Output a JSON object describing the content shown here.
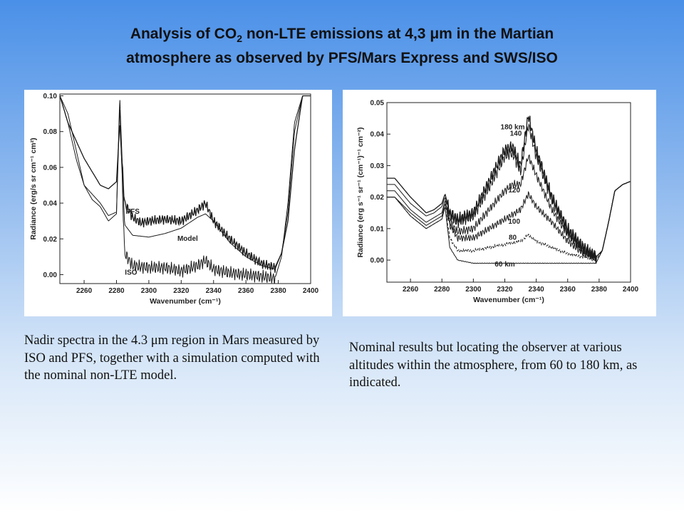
{
  "title": {
    "line1_pre": "Analysis of CO",
    "line1_sub": "2",
    "line1_post": " non-LTE emissions at 4,3 μm in the Martian",
    "line2": "atmosphere as observed by PFS/Mars Express and SWS/ISO"
  },
  "captions": {
    "left": "Nadir spectra in the 4.3 μm region in Mars measured by ISO and PFS, together with a simulation computed with the nominal non-LTE model.",
    "right": "Nominal results but locating the observer at various altitudes within the atmosphere, from 60 to 180 km, as indicated."
  },
  "chart_data": [
    {
      "type": "line",
      "xlabel": "Wavenumber (cm⁻¹)",
      "ylabel": "Radiance (erg/s sr cm⁻¹ cm²)",
      "xlim": [
        2245,
        2400
      ],
      "ylim": [
        -0.005,
        0.101
      ],
      "xticks": [
        2260,
        2280,
        2300,
        2320,
        2340,
        2360,
        2380,
        2400
      ],
      "yticks": [
        0.0,
        0.02,
        0.04,
        0.06,
        0.08,
        0.1
      ],
      "ytick_labels": [
        "0.00",
        "0.02",
        "0.04",
        "0.06",
        "0.08",
        "0.10"
      ],
      "series": [
        {
          "name": "PFS",
          "x": [
            2245,
            2250,
            2260,
            2270,
            2275,
            2280,
            2282,
            2285,
            2290,
            2295,
            2300,
            2310,
            2320,
            2330,
            2335,
            2340,
            2350,
            2360,
            2370,
            2378,
            2382,
            2386,
            2390,
            2395
          ],
          "y": [
            0.1,
            0.085,
            0.065,
            0.05,
            0.048,
            0.052,
            0.085,
            0.04,
            0.032,
            0.029,
            0.03,
            0.031,
            0.03,
            0.036,
            0.04,
            0.03,
            0.02,
            0.012,
            0.006,
            0.004,
            0.012,
            0.03,
            0.07,
            0.1
          ],
          "noise": 0.003
        },
        {
          "name": "Model",
          "x": [
            2245,
            2250,
            2255,
            2260,
            2265,
            2270,
            2275,
            2280,
            2282,
            2285,
            2290,
            2300,
            2310,
            2320,
            2330,
            2335,
            2340,
            2350,
            2360,
            2370,
            2378,
            2382,
            2386,
            2390,
            2395
          ],
          "y": [
            0.1,
            0.09,
            0.07,
            0.05,
            0.045,
            0.04,
            0.033,
            0.035,
            0.1,
            0.028,
            0.022,
            0.021,
            0.023,
            0.026,
            0.032,
            0.034,
            0.03,
            0.018,
            0.01,
            0.005,
            0.003,
            0.012,
            0.035,
            0.08,
            0.1
          ],
          "noise": 0.0
        },
        {
          "name": "ISO",
          "x": [
            2245,
            2250,
            2255,
            2260,
            2265,
            2270,
            2275,
            2280,
            2282,
            2285,
            2290,
            2300,
            2310,
            2320,
            2330,
            2335,
            2340,
            2350,
            2360,
            2370,
            2378,
            2382,
            2386,
            2390,
            2395
          ],
          "y": [
            0.1,
            0.085,
            0.065,
            0.05,
            0.042,
            0.038,
            0.03,
            0.034,
            0.095,
            0.012,
            0.005,
            0.004,
            0.004,
            0.002,
            0.005,
            0.008,
            0.003,
            0.001,
            0.0,
            -0.001,
            -0.002,
            0.01,
            0.04,
            0.085,
            0.1
          ],
          "noise": 0.004
        }
      ],
      "annotations": [
        {
          "text": "PFS",
          "x": 2290,
          "y": 0.034
        },
        {
          "text": "Model",
          "x": 2324,
          "y": 0.019
        },
        {
          "text": "ISO",
          "x": 2289,
          "y": 0.0
        }
      ]
    },
    {
      "type": "line",
      "xlabel": "Wavenumber (cm⁻¹)",
      "ylabel": "Radiance (erg s⁻¹ sr⁻¹ (cm⁻¹)⁻¹ cm⁻²)",
      "xlim": [
        2245,
        2400
      ],
      "ylim": [
        -0.007,
        0.05
      ],
      "xticks": [
        2260,
        2280,
        2300,
        2320,
        2340,
        2360,
        2380,
        2400
      ],
      "yticks": [
        0.0,
        0.01,
        0.02,
        0.03,
        0.04,
        0.05
      ],
      "ytick_labels": [
        "0.00",
        "0.01",
        "0.02",
        "0.03",
        "0.04",
        "0.05"
      ],
      "series": [
        {
          "name": "180 km",
          "x": [
            2250,
            2260,
            2270,
            2275,
            2280,
            2282,
            2285,
            2290,
            2300,
            2310,
            2320,
            2325,
            2330,
            2335,
            2340,
            2350,
            2360,
            2370,
            2378,
            2382,
            2386,
            2390,
            2395,
            2400
          ],
          "y": [
            0.026,
            0.02,
            0.015,
            0.016,
            0.018,
            0.021,
            0.015,
            0.013,
            0.015,
            0.025,
            0.035,
            0.036,
            0.03,
            0.046,
            0.035,
            0.02,
            0.01,
            0.004,
            0.001,
            0.003,
            0.012,
            0.022,
            0.024,
            0.025
          ],
          "noise": 0.0022
        },
        {
          "name": "140",
          "x": [
            2250,
            2260,
            2270,
            2275,
            2280,
            2282,
            2285,
            2290,
            2300,
            2310,
            2320,
            2325,
            2330,
            2335,
            2340,
            2350,
            2360,
            2370,
            2378,
            2382,
            2386,
            2390,
            2395,
            2400
          ],
          "y": [
            0.024,
            0.018,
            0.014,
            0.015,
            0.017,
            0.02,
            0.014,
            0.012,
            0.014,
            0.023,
            0.033,
            0.034,
            0.028,
            0.043,
            0.033,
            0.019,
            0.009,
            0.004,
            0.001,
            0.003,
            0.012,
            0.022,
            0.024,
            0.025
          ],
          "noise": 0.002
        },
        {
          "name": "120",
          "x": [
            2250,
            2260,
            2270,
            2280,
            2282,
            2285,
            2290,
            2300,
            2310,
            2320,
            2325,
            2330,
            2335,
            2340,
            2350,
            2360,
            2370,
            2378,
            2382,
            2386,
            2390,
            2395,
            2400
          ],
          "y": [
            0.022,
            0.016,
            0.012,
            0.015,
            0.019,
            0.012,
            0.009,
            0.01,
            0.016,
            0.022,
            0.024,
            0.024,
            0.033,
            0.027,
            0.016,
            0.008,
            0.003,
            0.001,
            0.003,
            0.012,
            0.022,
            0.024,
            0.025
          ],
          "noise": 0.0015
        },
        {
          "name": "100",
          "x": [
            2250,
            2260,
            2270,
            2280,
            2282,
            2285,
            2290,
            2300,
            2310,
            2320,
            2330,
            2335,
            2340,
            2350,
            2360,
            2370,
            2378,
            2382,
            2386,
            2390,
            2395,
            2400
          ],
          "y": [
            0.02,
            0.015,
            0.011,
            0.014,
            0.018,
            0.011,
            0.007,
            0.007,
            0.01,
            0.013,
            0.016,
            0.021,
            0.017,
            0.012,
            0.006,
            0.002,
            0.001,
            0.003,
            0.012,
            0.022,
            0.024,
            0.025
          ],
          "noise": 0.0012
        },
        {
          "name": "80",
          "x": [
            2250,
            2260,
            2270,
            2280,
            2282,
            2285,
            2290,
            2300,
            2310,
            2320,
            2330,
            2335,
            2340,
            2350,
            2360,
            2370,
            2378,
            2382,
            2386,
            2390,
            2395,
            2400
          ],
          "y": [
            0.02,
            0.014,
            0.01,
            0.013,
            0.017,
            0.007,
            0.003,
            0.003,
            0.004,
            0.005,
            0.006,
            0.008,
            0.006,
            0.004,
            0.002,
            0.001,
            0.0,
            0.003,
            0.012,
            0.022,
            0.024,
            0.025
          ],
          "noise": 0.0005
        },
        {
          "name": "60 km",
          "x": [
            2250,
            2260,
            2270,
            2280,
            2282,
            2285,
            2290,
            2300,
            2310,
            2320,
            2330,
            2340,
            2350,
            2360,
            2370,
            2378,
            2382,
            2386,
            2390,
            2395,
            2400
          ],
          "y": [
            0.02,
            0.014,
            0.01,
            0.013,
            0.017,
            0.004,
            0.0,
            -0.001,
            -0.001,
            -0.001,
            -0.001,
            -0.001,
            -0.001,
            -0.001,
            -0.001,
            -0.001,
            0.003,
            0.012,
            0.022,
            0.024,
            0.025
          ],
          "noise": 0.0001
        }
      ],
      "annotations": [
        {
          "text": "180 km",
          "x": 2325,
          "y": 0.0415
        },
        {
          "text": "140",
          "x": 2327,
          "y": 0.0395
        },
        {
          "text": "120",
          "x": 2326,
          "y": 0.0215
        },
        {
          "text": "100",
          "x": 2326,
          "y": 0.0115
        },
        {
          "text": "80",
          "x": 2325,
          "y": 0.0065
        },
        {
          "text": "60 km",
          "x": 2320,
          "y": -0.002
        }
      ]
    }
  ]
}
